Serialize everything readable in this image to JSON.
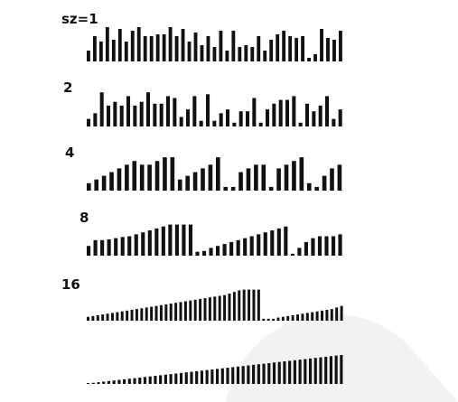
{
  "rows": [
    {
      "label": "sz=1",
      "values": [
        0.3,
        0.7,
        0.55,
        0.95,
        0.6,
        0.9,
        0.55,
        0.85,
        0.95,
        0.7,
        0.7,
        0.75,
        0.75,
        0.95,
        0.7,
        0.9,
        0.55,
        0.8,
        0.45,
        0.7,
        0.4,
        0.85,
        0.3,
        0.85,
        0.4,
        0.45,
        0.4,
        0.7,
        0.3,
        0.6,
        0.75,
        0.85,
        0.7,
        0.65,
        0.7,
        0.1,
        0.2,
        0.9,
        0.65,
        0.6,
        0.85
      ]
    },
    {
      "label": "2",
      "values": [
        0.2,
        0.35,
        0.9,
        0.55,
        0.65,
        0.55,
        0.8,
        0.55,
        0.65,
        0.9,
        0.6,
        0.6,
        0.8,
        0.75,
        0.25,
        0.45,
        0.8,
        0.15,
        0.85,
        0.15,
        0.35,
        0.45,
        0.1,
        0.4,
        0.4,
        0.75,
        0.1,
        0.45,
        0.6,
        0.7,
        0.7,
        0.8,
        0.1,
        0.6,
        0.4,
        0.55,
        0.8,
        0.2,
        0.45
      ]
    },
    {
      "label": "4",
      "values": [
        0.2,
        0.3,
        0.4,
        0.5,
        0.6,
        0.7,
        0.8,
        0.7,
        0.7,
        0.8,
        0.9,
        0.9,
        0.3,
        0.4,
        0.5,
        0.6,
        0.7,
        0.9,
        0.1,
        0.1,
        0.5,
        0.6,
        0.7,
        0.7,
        0.1,
        0.6,
        0.7,
        0.8,
        0.9,
        0.2,
        0.1,
        0.4,
        0.6,
        0.7
      ]
    },
    {
      "label": "8",
      "values": [
        0.25,
        0.4,
        0.4,
        0.42,
        0.45,
        0.48,
        0.5,
        0.55,
        0.6,
        0.65,
        0.7,
        0.75,
        0.8,
        0.8,
        0.8,
        0.8,
        0.1,
        0.12,
        0.2,
        0.25,
        0.3,
        0.35,
        0.4,
        0.45,
        0.5,
        0.55,
        0.6,
        0.65,
        0.7,
        0.75,
        0.05,
        0.2,
        0.35,
        0.45,
        0.5,
        0.5,
        0.5,
        0.55
      ]
    },
    {
      "label": "16",
      "values": [
        0.1,
        0.12,
        0.14,
        0.16,
        0.18,
        0.2,
        0.22,
        0.24,
        0.26,
        0.28,
        0.3,
        0.32,
        0.34,
        0.36,
        0.38,
        0.4,
        0.42,
        0.44,
        0.46,
        0.48,
        0.5,
        0.52,
        0.54,
        0.56,
        0.58,
        0.6,
        0.62,
        0.64,
        0.66,
        0.7,
        0.74,
        0.78,
        0.8,
        0.8,
        0.8,
        0.8,
        0.05,
        0.05,
        0.05,
        0.08,
        0.1,
        0.12,
        0.14,
        0.16,
        0.18,
        0.2,
        0.22,
        0.24,
        0.26,
        0.28,
        0.3,
        0.34,
        0.38
      ]
    },
    {
      "label": "",
      "values": [
        0.02,
        0.04,
        0.06,
        0.08,
        0.1,
        0.12,
        0.14,
        0.16,
        0.18,
        0.2,
        0.22,
        0.24,
        0.26,
        0.28,
        0.3,
        0.32,
        0.34,
        0.36,
        0.38,
        0.4,
        0.42,
        0.44,
        0.46,
        0.48,
        0.5,
        0.52,
        0.54,
        0.56,
        0.58,
        0.6,
        0.62,
        0.64,
        0.66,
        0.68,
        0.7,
        0.72,
        0.74,
        0.76,
        0.78,
        0.8,
        0.82,
        0.84,
        0.86,
        0.88,
        0.9,
        0.92,
        0.94,
        0.96,
        0.98,
        1.0
      ]
    }
  ]
}
